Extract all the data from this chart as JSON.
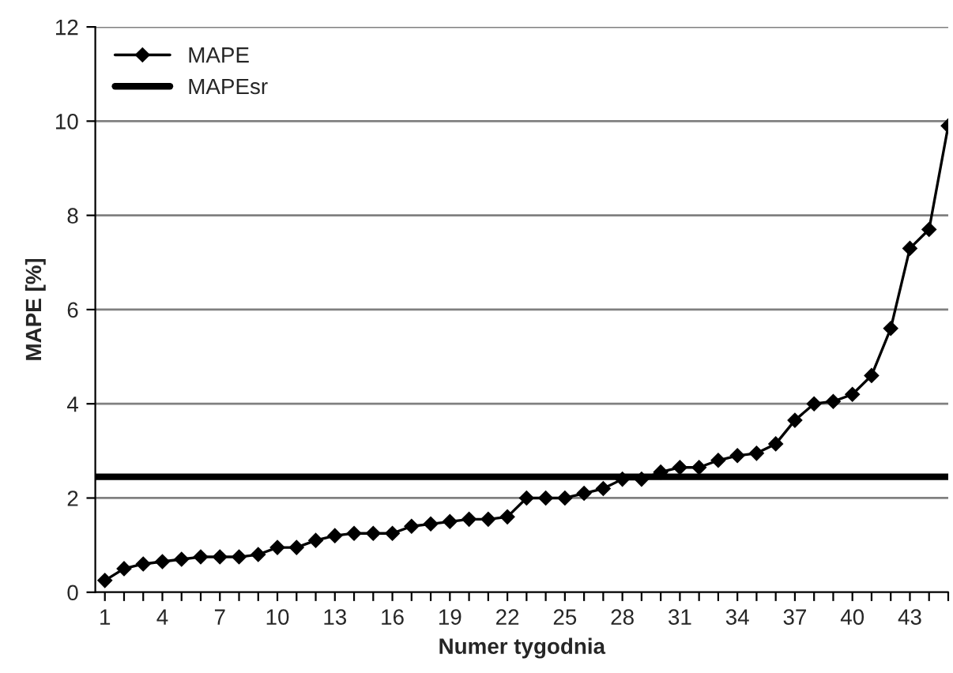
{
  "chart_data": {
    "type": "line",
    "xlabel": "Numer tygodnia",
    "ylabel": "MAPE [%]",
    "categories": [
      "1",
      null,
      null,
      "4",
      null,
      null,
      "7",
      null,
      null,
      "10",
      null,
      null,
      "13",
      null,
      null,
      "16",
      null,
      null,
      "19",
      null,
      null,
      "22",
      null,
      null,
      "25",
      null,
      null,
      "28",
      null,
      null,
      "31",
      null,
      null,
      "34",
      null,
      null,
      "37",
      null,
      null,
      "40",
      null,
      null,
      "43",
      null,
      null
    ],
    "series": [
      {
        "name": "MAPE",
        "color": "#000000",
        "values": [
          0.25,
          0.5,
          0.6,
          0.65,
          0.7,
          0.75,
          0.75,
          0.75,
          0.8,
          0.95,
          0.95,
          1.1,
          1.2,
          1.25,
          1.25,
          1.25,
          1.4,
          1.45,
          1.5,
          1.55,
          1.55,
          1.6,
          2.0,
          2.0,
          2.0,
          2.1,
          2.2,
          2.4,
          2.4,
          2.55,
          2.65,
          2.65,
          2.8,
          2.9,
          2.95,
          3.15,
          3.65,
          4.0,
          4.05,
          4.2,
          4.6,
          5.6,
          7.3,
          7.7,
          9.9
        ]
      }
    ],
    "ref_lines": [
      {
        "axis": "y",
        "value": 2.45,
        "label": "MAPEsr",
        "color": "#000000",
        "line_style": "solid"
      }
    ],
    "ylim": [
      0,
      12
    ],
    "yticks": [
      0,
      2,
      4,
      6,
      8,
      10,
      12
    ],
    "grid": "y",
    "legend": "top left",
    "marker": "diamond",
    "line_style": "solid"
  }
}
